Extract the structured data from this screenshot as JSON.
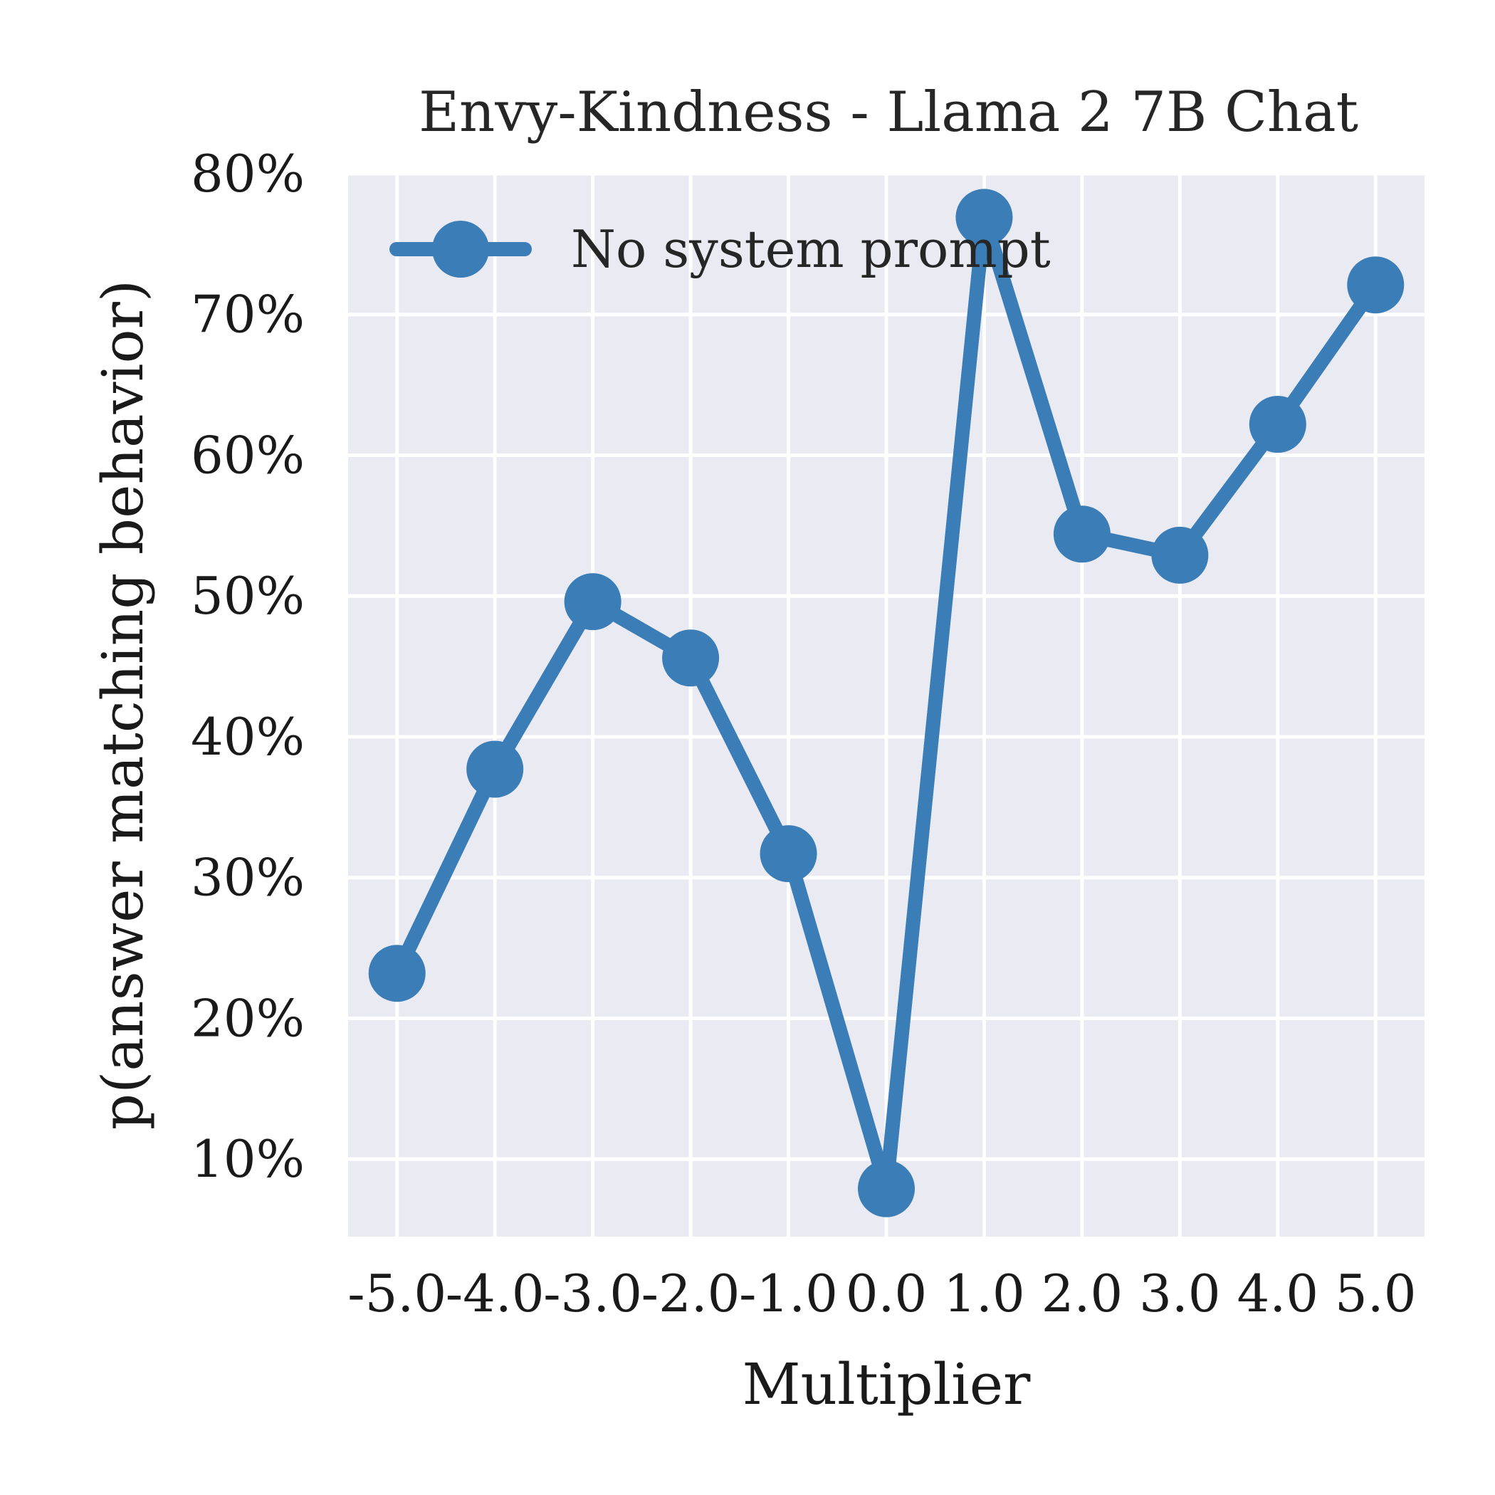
{
  "chart_data": {
    "type": "line",
    "title": "Envy-Kindness - Llama 2 7B Chat",
    "xlabel": "Multiplier",
    "ylabel": "p(answer matching behavior)",
    "x": [
      -5.0,
      -4.0,
      -3.0,
      -2.0,
      -1.0,
      0.0,
      1.0,
      2.0,
      3.0,
      4.0,
      5.0
    ],
    "x_tick_labels": [
      "-5.0",
      "-4.0",
      "-3.0",
      "-2.0",
      "-1.0",
      "0.0",
      "1.0",
      "2.0",
      "3.0",
      "4.0",
      "5.0"
    ],
    "y_ticks": [
      0.1,
      0.2,
      0.3,
      0.4,
      0.5,
      0.6,
      0.7,
      0.8
    ],
    "y_tick_labels": [
      "10%",
      "20%",
      "30%",
      "40%",
      "50%",
      "60%",
      "70%",
      "80%"
    ],
    "xlim": [
      -5.5,
      5.5
    ],
    "ylim": [
      0.045,
      0.8
    ],
    "grid": true,
    "legend_position": "top-left",
    "series": [
      {
        "name": "No system prompt",
        "color": "#3a7db7",
        "values": [
          0.232,
          0.377,
          0.496,
          0.456,
          0.317,
          0.079,
          0.769,
          0.544,
          0.529,
          0.622,
          0.721
        ]
      }
    ],
    "plot_background": "#eaeaf2"
  }
}
